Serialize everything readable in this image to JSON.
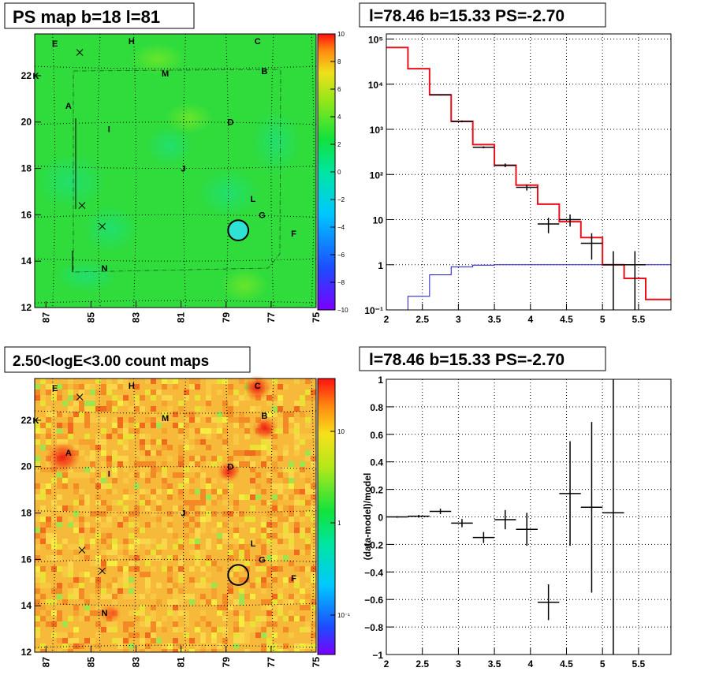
{
  "chart_data": [
    {
      "type": "heatmap",
      "title": "PS map b=18 l=81",
      "x_ticks": [
        "87",
        "85",
        "83",
        "81",
        "79",
        "77",
        "75"
      ],
      "y_ticks": [
        "12",
        "14",
        "16",
        "18",
        "20",
        "22"
      ],
      "xlim": [
        87.5,
        75
      ],
      "ylim": [
        12,
        23.8
      ],
      "colorbar": {
        "ticks": [
          "10",
          "8",
          "6",
          "4",
          "2",
          "0",
          "−2",
          "−4",
          "−6",
          "−8",
          "−10"
        ],
        "range": [
          -10,
          10
        ]
      },
      "source_labels": [
        {
          "label": "E",
          "l": 86.6,
          "b": 23.4
        },
        {
          "label": "H",
          "l": 83.2,
          "b": 23.5
        },
        {
          "label": "C",
          "l": 77.6,
          "b": 23.5
        },
        {
          "label": "K",
          "l": 87.45,
          "b": 22.0
        },
        {
          "label": "M",
          "l": 81.7,
          "b": 22.1
        },
        {
          "label": "B",
          "l": 77.3,
          "b": 22.2
        },
        {
          "label": "A",
          "l": 86.0,
          "b": 20.7
        },
        {
          "label": "I",
          "l": 84.2,
          "b": 19.7
        },
        {
          "label": "D",
          "l": 78.8,
          "b": 20.0
        },
        {
          "label": "J",
          "l": 80.9,
          "b": 18.0
        },
        {
          "label": "L",
          "l": 77.8,
          "b": 16.7
        },
        {
          "label": "G",
          "l": 77.4,
          "b": 16.0
        },
        {
          "label": "F",
          "l": 76.0,
          "b": 15.2
        },
        {
          "label": "N",
          "l": 84.4,
          "b": 13.7
        }
      ],
      "crosses": [
        {
          "l": 85.5,
          "b": 23.0
        },
        {
          "l": 85.4,
          "b": 16.4
        },
        {
          "l": 84.5,
          "b": 15.5
        }
      ],
      "circle": {
        "l": 78.46,
        "b": 15.33,
        "radius": 0.45
      }
    },
    {
      "type": "line",
      "title": "l=78.46 b=15.33 PS=-2.70",
      "x_ticks": [
        "2",
        "2.5",
        "3",
        "3.5",
        "4",
        "4.5",
        "5",
        "5.5"
      ],
      "xlim": [
        2,
        5.95
      ],
      "y_log": true,
      "ylim": [
        0.1,
        130000
      ],
      "y_ticks": [
        {
          "value": 0.1,
          "label": "10⁻¹"
        },
        {
          "value": 1,
          "label": "1"
        },
        {
          "value": 10,
          "label": "10"
        },
        {
          "value": 100,
          "label": "10²"
        },
        {
          "value": 1000,
          "label": "10³"
        },
        {
          "value": 10000,
          "label": "10⁴"
        },
        {
          "value": 100000,
          "label": "10⁵"
        }
      ],
      "bin_edges": [
        2.0,
        2.3,
        2.6,
        2.9,
        3.2,
        3.5,
        3.8,
        4.1,
        4.4,
        4.7,
        5.0,
        5.3,
        5.6,
        5.95
      ],
      "series": [
        {
          "color": "#e8101a",
          "style": "step",
          "values": [
            65000,
            22000,
            5800,
            1500,
            460,
            160,
            58,
            22,
            9,
            4,
            1,
            0.5,
            0.17
          ]
        },
        {
          "color": "#1c16c8",
          "style": "step",
          "values": [
            0.1,
            0.2,
            0.6,
            0.9,
            0.98,
            1.0,
            1.0,
            1.0,
            1.0,
            1.0,
            1.0,
            1.0,
            1.0
          ]
        },
        {
          "color": "#000000",
          "style": "errorbar",
          "points": [
            {
              "x": 2.75,
              "y": 5800,
              "xerr": 0.15,
              "ylo": 5600,
              "yhi": 6000
            },
            {
              "x": 3.05,
              "y": 1500,
              "xerr": 0.15,
              "ylo": 1430,
              "yhi": 1570
            },
            {
              "x": 3.35,
              "y": 400,
              "xerr": 0.15,
              "ylo": 380,
              "yhi": 420
            },
            {
              "x": 3.65,
              "y": 160,
              "xerr": 0.15,
              "ylo": 145,
              "yhi": 175
            },
            {
              "x": 3.95,
              "y": 52,
              "xerr": 0.15,
              "ylo": 44,
              "yhi": 60
            },
            {
              "x": 4.25,
              "y": 8,
              "xerr": 0.15,
              "ylo": 5,
              "yhi": 11
            },
            {
              "x": 4.55,
              "y": 10,
              "xerr": 0.15,
              "ylo": 7,
              "yhi": 13
            },
            {
              "x": 4.85,
              "y": 3,
              "xerr": 0.15,
              "ylo": 1.3,
              "yhi": 5
            },
            {
              "x": 5.15,
              "y": 1,
              "xerr": 0.15,
              "ylo": 0.1,
              "yhi": 2
            },
            {
              "x": 5.45,
              "y": 1,
              "xerr": 0.15,
              "ylo": 0.1,
              "yhi": 2
            }
          ]
        }
      ]
    },
    {
      "type": "heatmap",
      "title": "2.50<logE<3.00 count maps",
      "x_ticks": [
        "87",
        "85",
        "83",
        "81",
        "79",
        "77",
        "75"
      ],
      "y_ticks": [
        "12",
        "14",
        "16",
        "18",
        "20",
        "22"
      ],
      "xlim": [
        87.5,
        75
      ],
      "ylim": [
        12,
        23.8
      ],
      "colorbar": {
        "log": true,
        "ticks": [
          "10",
          "1",
          "10⁻¹"
        ]
      },
      "source_labels": [
        {
          "label": "E",
          "l": 86.6,
          "b": 23.4
        },
        {
          "label": "H",
          "l": 83.2,
          "b": 23.5
        },
        {
          "label": "C",
          "l": 77.6,
          "b": 23.5
        },
        {
          "label": "K",
          "l": 87.45,
          "b": 22.0
        },
        {
          "label": "M",
          "l": 81.7,
          "b": 22.1
        },
        {
          "label": "B",
          "l": 77.3,
          "b": 22.2
        },
        {
          "label": "A",
          "l": 86.0,
          "b": 20.6
        },
        {
          "label": "I",
          "l": 84.2,
          "b": 19.7
        },
        {
          "label": "D",
          "l": 78.8,
          "b": 20.0
        },
        {
          "label": "J",
          "l": 80.9,
          "b": 18.0
        },
        {
          "label": "L",
          "l": 77.8,
          "b": 16.7
        },
        {
          "label": "G",
          "l": 77.4,
          "b": 16.0
        },
        {
          "label": "F",
          "l": 76.0,
          "b": 15.2
        },
        {
          "label": "N",
          "l": 84.4,
          "b": 13.7
        }
      ],
      "crosses": [
        {
          "l": 85.5,
          "b": 23.0
        },
        {
          "l": 85.4,
          "b": 16.4
        },
        {
          "l": 84.5,
          "b": 15.5
        }
      ],
      "circle": {
        "l": 78.46,
        "b": 15.33,
        "radius": 0.45
      }
    },
    {
      "type": "scatter",
      "title": "l=78.46 b=15.33 PS=-2.70",
      "ylabel": "(data-model)/model",
      "x_ticks": [
        "2",
        "2.5",
        "3",
        "3.5",
        "4",
        "4.5",
        "5",
        "5.5"
      ],
      "xlim": [
        2,
        5.95
      ],
      "ylim": [
        -1,
        1
      ],
      "y_ticks": [
        "1",
        "0.8",
        "0.6",
        "0.4",
        "0.2",
        "0",
        "−0.2",
        "−0.4",
        "−0.6",
        "−0.8",
        "−1"
      ],
      "points": [
        {
          "x": 2.15,
          "y": 0.0,
          "xerr": 0.15,
          "yerr": 0.006
        },
        {
          "x": 2.45,
          "y": 0.005,
          "xerr": 0.15,
          "yerr": 0.01
        },
        {
          "x": 2.75,
          "y": 0.04,
          "xerr": 0.15,
          "yerr": 0.02
        },
        {
          "x": 3.05,
          "y": -0.045,
          "xerr": 0.15,
          "yerr": 0.03
        },
        {
          "x": 3.35,
          "y": -0.15,
          "xerr": 0.15,
          "yerr": 0.04
        },
        {
          "x": 3.65,
          "y": -0.02,
          "xerr": 0.15,
          "yerr": 0.07
        },
        {
          "x": 3.95,
          "y": -0.09,
          "xerr": 0.15,
          "yerr": 0.12
        },
        {
          "x": 4.25,
          "y": -0.62,
          "xerr": 0.15,
          "yerr": 0.13
        },
        {
          "x": 4.55,
          "y": 0.17,
          "xerr": 0.15,
          "yerr": 0.38
        },
        {
          "x": 4.85,
          "y": 0.07,
          "xerr": 0.15,
          "yerr": 0.62
        },
        {
          "x": 5.15,
          "y": 0.03,
          "xerr": 0.15,
          "yerr": 1.1
        }
      ]
    }
  ]
}
